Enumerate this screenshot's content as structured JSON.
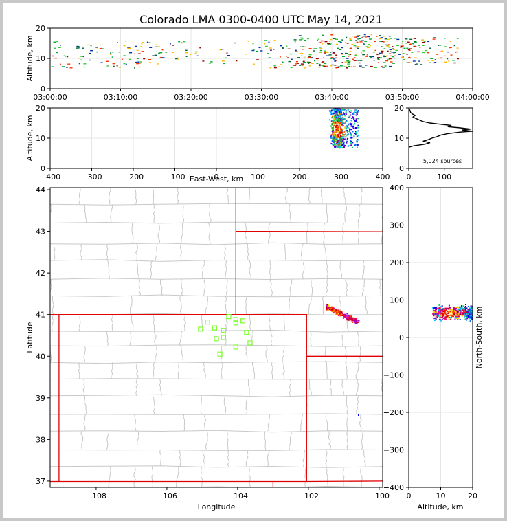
{
  "chart_data": [
    {
      "id": "time_height",
      "type": "heatmap",
      "title": "Colorado LMA 0300-0400 UTC May 14, 2021",
      "xlabel": "",
      "ylabel": "Altitude, km",
      "xlim": [
        "03:00:00",
        "04:00:00"
      ],
      "ylim": [
        0,
        20
      ],
      "x_ticks": [
        "03:00:00",
        "03:10:00",
        "03:20:00",
        "03:30:00",
        "03:40:00",
        "03:50:00",
        "04:00:00"
      ],
      "y_ticks": [
        "0",
        "10",
        "20"
      ],
      "grid": true,
      "clusters": [
        {
          "t_start_min": 0,
          "t_end_min": 14,
          "alt_min": 7,
          "alt_max": 16,
          "density": 0.18
        },
        {
          "t_start_min": 14,
          "t_end_min": 30,
          "alt_min": 8,
          "alt_max": 16,
          "density": 0.1
        },
        {
          "t_start_min": 30,
          "t_end_min": 35,
          "alt_min": 7,
          "alt_max": 17,
          "density": 0.22
        },
        {
          "t_start_min": 35,
          "t_end_min": 49,
          "alt_min": 7,
          "alt_max": 18,
          "density": 0.55
        },
        {
          "t_start_min": 49,
          "t_end_min": 58,
          "alt_min": 8,
          "alt_max": 17,
          "density": 0.3
        }
      ]
    },
    {
      "id": "ew_height",
      "type": "heatmap",
      "xlabel": "East-West, km",
      "ylabel": "Altitude, km",
      "xlim": [
        -400,
        400
      ],
      "ylim": [
        0,
        20
      ],
      "x_ticks": [
        "−400",
        "−300",
        "−200",
        "−100",
        "0",
        "100",
        "200",
        "300",
        "400"
      ],
      "y_ticks": [
        "0",
        "10",
        "20"
      ],
      "grid": true,
      "cluster": {
        "x_center": 290,
        "x_halfwidth": 22,
        "x_tail": 50,
        "alt_min": 7,
        "alt_max": 20
      }
    },
    {
      "id": "alt_histogram",
      "type": "line",
      "xlim": [
        0,
        180
      ],
      "ylim": [
        0,
        20
      ],
      "x_ticks": [
        "0",
        "100"
      ],
      "y_ticks": [
        "0",
        "10",
        "20"
      ],
      "annotation": "5,024 sources",
      "profile": [
        [
          7.0,
          0
        ],
        [
          7.5,
          15
        ],
        [
          8.0,
          45
        ],
        [
          8.5,
          60
        ],
        [
          9.0,
          40
        ],
        [
          9.5,
          55
        ],
        [
          10.0,
          65
        ],
        [
          10.5,
          80
        ],
        [
          11.0,
          90
        ],
        [
          11.5,
          110
        ],
        [
          12.0,
          145
        ],
        [
          12.3,
          180
        ],
        [
          12.7,
          150
        ],
        [
          13.0,
          175
        ],
        [
          13.4,
          145
        ],
        [
          13.8,
          110
        ],
        [
          14.2,
          120
        ],
        [
          14.6,
          90
        ],
        [
          15.0,
          60
        ],
        [
          15.5,
          40
        ],
        [
          16.0,
          30
        ],
        [
          16.5,
          20
        ],
        [
          17.0,
          12
        ],
        [
          17.5,
          18
        ],
        [
          18.0,
          10
        ],
        [
          18.5,
          5
        ],
        [
          19.0,
          4
        ],
        [
          20.0,
          0
        ]
      ]
    },
    {
      "id": "plan_map",
      "type": "scatter",
      "xlabel": "Longitude",
      "ylabel": "Latitude",
      "xlim": [
        -109.3,
        -99.9
      ],
      "ylim": [
        36.85,
        44.05
      ],
      "x_ticks": [
        "−108",
        "−106",
        "−104",
        "−102",
        "−100"
      ],
      "y_ticks": [
        "37",
        "38",
        "39",
        "40",
        "41",
        "42",
        "43",
        "44"
      ],
      "stations": [
        [
          -104.85,
          40.82
        ],
        [
          -105.05,
          40.65
        ],
        [
          -104.65,
          40.68
        ],
        [
          -104.4,
          40.62
        ],
        [
          -104.05,
          40.88
        ],
        [
          -104.25,
          40.95
        ],
        [
          -104.05,
          40.8
        ],
        [
          -103.85,
          40.85
        ],
        [
          -104.6,
          40.42
        ],
        [
          -104.4,
          40.45
        ],
        [
          -103.75,
          40.57
        ],
        [
          -103.65,
          40.32
        ],
        [
          -104.05,
          40.22
        ],
        [
          -104.5,
          40.05
        ]
      ],
      "source_cluster": {
        "lon_start": -101.5,
        "lon_end": -100.6,
        "lat_top": 41.2,
        "lat_bottom": 40.83
      }
    },
    {
      "id": "alt_ns",
      "type": "heatmap",
      "xlabel": "Altitude, km",
      "ylabel": "North-South, km",
      "xlim": [
        0,
        20
      ],
      "ylim": [
        -400,
        400
      ],
      "x_ticks": [
        "0",
        "10",
        "20"
      ],
      "y_ticks": [
        "−400",
        "−300",
        "−200",
        "−100",
        "0",
        "100",
        "200",
        "300",
        "400"
      ],
      "grid": true,
      "cluster": {
        "alt_min": 7,
        "alt_max": 20,
        "ns_min": 45,
        "ns_max": 90
      }
    }
  ],
  "colors": {
    "state_border": "#e00000",
    "county_border": "#c8c8c8",
    "station": "#7cff2e",
    "grid": "#e6e6e6"
  }
}
